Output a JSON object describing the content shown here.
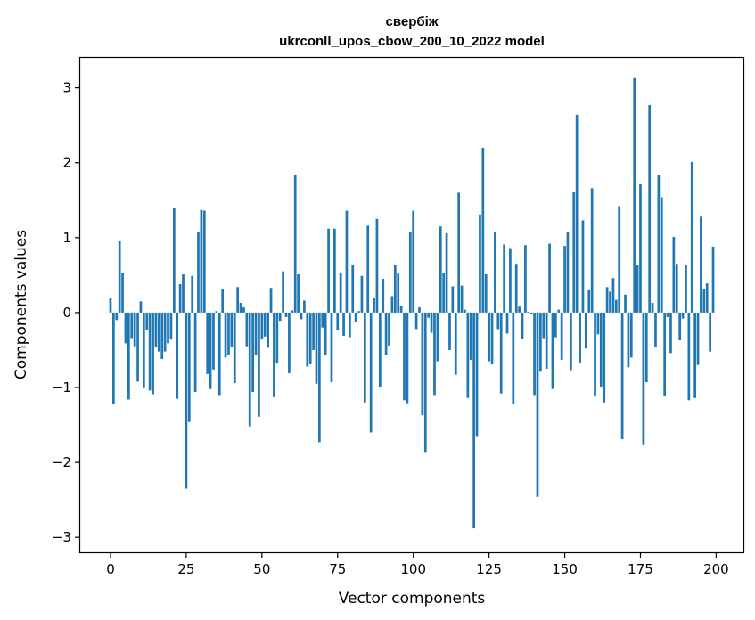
{
  "chart_data": {
    "type": "bar",
    "title": "свербіж",
    "subtitle": "ukrconll_upos_cbow_200_10_2022 model",
    "xlabel": "Vector components",
    "ylabel": "Components values",
    "xlim": [
      -10,
      209
    ],
    "ylim": [
      -3.2,
      3.4
    ],
    "xticks": [
      0,
      25,
      50,
      75,
      100,
      125,
      150,
      175,
      200
    ],
    "yticks": [
      -3,
      -2,
      -1,
      0,
      1,
      2,
      3
    ],
    "bar_color": "#1f77b4",
    "grid": false,
    "values": [
      0.19,
      -1.22,
      -0.1,
      0.95,
      0.53,
      -0.41,
      -1.16,
      -0.34,
      -0.45,
      -0.92,
      0.15,
      -1.01,
      -0.23,
      -1.04,
      -1.09,
      -0.46,
      -0.52,
      -0.62,
      -0.52,
      -0.41,
      -0.36,
      1.39,
      -1.15,
      0.38,
      0.51,
      -2.35,
      -1.46,
      0.49,
      -1.06,
      1.07,
      1.37,
      1.36,
      -0.82,
      -1.02,
      -0.76,
      0.02,
      -1.1,
      0.32,
      -0.6,
      -0.56,
      -0.46,
      -0.94,
      0.34,
      0.13,
      0.07,
      -0.45,
      -1.52,
      -1.06,
      -0.56,
      -1.39,
      -0.36,
      -0.32,
      -0.47,
      0.33,
      -1.13,
      -0.68,
      -0.11,
      0.55,
      -0.06,
      -0.81,
      0.03,
      1.84,
      0.51,
      -0.09,
      0.16,
      -0.72,
      -0.69,
      -0.5,
      -0.95,
      -1.73,
      -0.2,
      -0.56,
      1.12,
      -0.93,
      1.12,
      -0.23,
      0.53,
      -0.31,
      1.36,
      -0.33,
      0.63,
      -0.12,
      0.02,
      0.49,
      -1.2,
      1.16,
      -1.6,
      0.2,
      1.25,
      -0.99,
      0.45,
      -0.57,
      -0.44,
      0.22,
      0.64,
      0.52,
      0.09,
      -1.17,
      -1.21,
      1.08,
      1.36,
      -0.22,
      0.07,
      -1.37,
      -1.86,
      -0.07,
      -0.27,
      -1.1,
      -0.65,
      1.15,
      0.53,
      1.06,
      -0.5,
      0.35,
      -0.83,
      1.6,
      0.36,
      0.04,
      -1.14,
      -0.63,
      -2.88,
      -1.66,
      1.31,
      2.2,
      0.51,
      -0.65,
      -0.69,
      1.07,
      -0.22,
      -1.08,
      0.91,
      -0.28,
      0.86,
      -1.22,
      0.65,
      0.08,
      -0.35,
      0.9,
      0.01,
      -0.02,
      -1.1,
      -2.46,
      -0.79,
      -0.34,
      -0.75,
      0.92,
      -1.02,
      -0.33,
      0.04,
      -0.63,
      0.89,
      1.07,
      -0.77,
      1.61,
      2.64,
      -0.67,
      1.23,
      -0.48,
      0.31,
      1.66,
      -1.12,
      -0.29,
      -0.99,
      -1.2,
      0.34,
      0.28,
      0.46,
      0.17,
      1.42,
      -1.69,
      0.24,
      -0.73,
      -0.6,
      3.13,
      0.63,
      1.71,
      -1.76,
      -0.93,
      2.77,
      0.13,
      -0.46,
      1.84,
      1.54,
      -1.11,
      -0.06,
      -0.54,
      1.01,
      0.65,
      -0.37,
      -0.08,
      0.64,
      -1.17,
      2.01,
      -1.14,
      -0.7,
      1.28,
      0.32,
      0.39,
      -0.52,
      0.88
    ]
  }
}
